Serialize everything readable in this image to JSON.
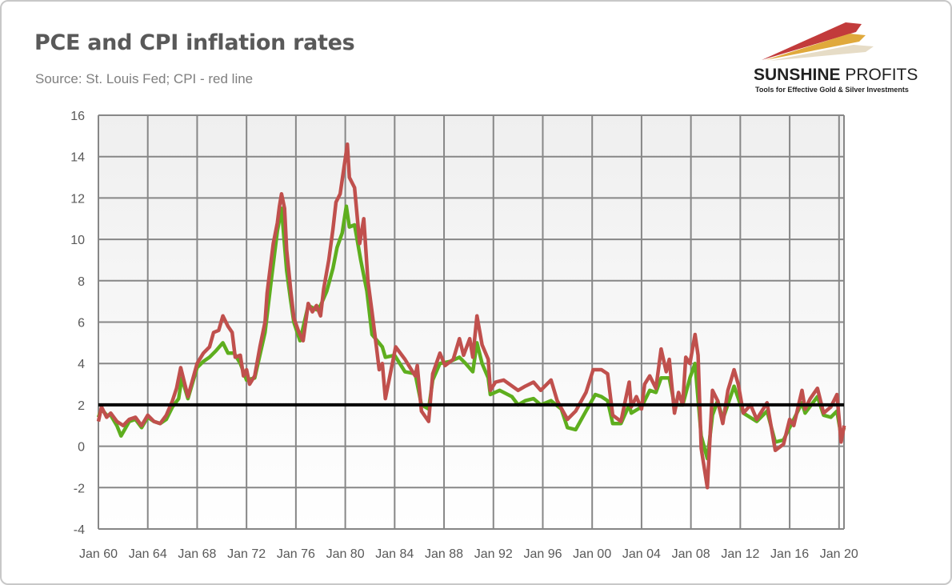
{
  "title": "PCE and CPI inflation rates",
  "subtitle": "Source: St. Louis Fed; CPI - red line",
  "logo": {
    "name_bold": "SUNSHINE",
    "name_light": "PROFITS",
    "tagline": "Tools for Effective Gold & Silver Investments"
  },
  "colors": {
    "pce": "#5eae1e",
    "cpi": "#c0504d",
    "reference": "#000000",
    "grid": "#878787"
  },
  "chart_data": {
    "type": "line",
    "title": "PCE and CPI inflation rates",
    "xlabel": "",
    "ylabel": "",
    "ylim": [
      -4,
      16
    ],
    "yticks": [
      -4,
      -2,
      0,
      2,
      4,
      6,
      8,
      10,
      12,
      14,
      16
    ],
    "xlim": [
      "1960-01",
      "2020-06"
    ],
    "xtick_labels": [
      "Jan 60",
      "Jan 64",
      "Jan 68",
      "Jan 72",
      "Jan 76",
      "Jan 80",
      "Jan 84",
      "Jan 88",
      "Jan 92",
      "Jan 96",
      "Jan 00",
      "Jan 04",
      "Jan 08",
      "Jan 12",
      "Jan 16",
      "Jan 20"
    ],
    "grid": true,
    "reference_line": 2,
    "series": [
      {
        "key": "cpi",
        "color": "#c0504d",
        "points": [
          [
            "1960-01",
            1.2
          ],
          [
            "1960-04",
            1.9
          ],
          [
            "1960-09",
            1.4
          ],
          [
            "1961-01",
            1.6
          ],
          [
            "1961-07",
            1.2
          ],
          [
            "1962-01",
            1.0
          ],
          [
            "1962-07",
            1.3
          ],
          [
            "1963-01",
            1.4
          ],
          [
            "1963-07",
            1.0
          ],
          [
            "1964-01",
            1.5
          ],
          [
            "1964-07",
            1.2
          ],
          [
            "1965-01",
            1.1
          ],
          [
            "1965-07",
            1.5
          ],
          [
            "1966-01",
            2.2
          ],
          [
            "1966-05",
            2.8
          ],
          [
            "1966-09",
            3.8
          ],
          [
            "1967-04",
            2.4
          ],
          [
            "1968-01",
            4.0
          ],
          [
            "1968-07",
            4.5
          ],
          [
            "1969-01",
            4.8
          ],
          [
            "1969-05",
            5.5
          ],
          [
            "1969-10",
            5.6
          ],
          [
            "1970-02",
            6.3
          ],
          [
            "1970-07",
            5.8
          ],
          [
            "1970-11",
            5.5
          ],
          [
            "1971-02",
            4.3
          ],
          [
            "1971-07",
            4.4
          ],
          [
            "1971-10",
            3.4
          ],
          [
            "1972-01",
            3.7
          ],
          [
            "1972-04",
            3.0
          ],
          [
            "1972-09",
            3.4
          ],
          [
            "1973-02",
            4.8
          ],
          [
            "1973-07",
            6.0
          ],
          [
            "1973-09",
            7.4
          ],
          [
            "1973-11",
            8.2
          ],
          [
            "1974-03",
            9.8
          ],
          [
            "1974-07",
            10.8
          ],
          [
            "1974-09",
            11.6
          ],
          [
            "1974-11",
            12.2
          ],
          [
            "1975-02",
            11.5
          ],
          [
            "1975-04",
            9.5
          ],
          [
            "1975-08",
            7.5
          ],
          [
            "1975-11",
            6.2
          ],
          [
            "1976-04",
            5.5
          ],
          [
            "1976-08",
            5.1
          ],
          [
            "1977-01",
            6.9
          ],
          [
            "1977-05",
            6.5
          ],
          [
            "1977-09",
            6.8
          ],
          [
            "1978-01",
            6.3
          ],
          [
            "1978-04",
            7.6
          ],
          [
            "1978-09",
            9.0
          ],
          [
            "1979-01",
            10.5
          ],
          [
            "1979-04",
            11.8
          ],
          [
            "1979-08",
            12.2
          ],
          [
            "1980-03",
            14.6
          ],
          [
            "1980-05",
            13.0
          ],
          [
            "1980-10",
            12.5
          ],
          [
            "1981-03",
            9.8
          ],
          [
            "1981-07",
            11.0
          ],
          [
            "1981-11",
            8.0
          ],
          [
            "1982-03",
            6.5
          ],
          [
            "1982-07",
            4.9
          ],
          [
            "1982-10",
            3.7
          ],
          [
            "1983-01",
            4.0
          ],
          [
            "1983-04",
            2.3
          ],
          [
            "1984-02",
            4.8
          ],
          [
            "1984-11",
            4.2
          ],
          [
            "1985-09",
            3.4
          ],
          [
            "1985-11",
            3.9
          ],
          [
            "1986-03",
            1.7
          ],
          [
            "1986-10",
            1.2
          ],
          [
            "1987-02",
            3.5
          ],
          [
            "1987-09",
            4.5
          ],
          [
            "1988-02",
            3.9
          ],
          [
            "1988-10",
            4.2
          ],
          [
            "1989-04",
            5.2
          ],
          [
            "1989-08",
            4.4
          ],
          [
            "1990-02",
            5.2
          ],
          [
            "1990-05",
            4.3
          ],
          [
            "1990-09",
            6.3
          ],
          [
            "1991-02",
            4.9
          ],
          [
            "1991-08",
            4.2
          ],
          [
            "1991-10",
            2.7
          ],
          [
            "1992-03",
            3.1
          ],
          [
            "1992-11",
            3.2
          ],
          [
            "1994-01",
            2.7
          ],
          [
            "1994-08",
            2.9
          ],
          [
            "1995-04",
            3.1
          ],
          [
            "1995-11",
            2.7
          ],
          [
            "1996-09",
            3.2
          ],
          [
            "1997-03",
            2.2
          ],
          [
            "1998-01",
            1.3
          ],
          [
            "1998-09",
            1.7
          ],
          [
            "1999-07",
            2.6
          ],
          [
            "2000-02",
            3.7
          ],
          [
            "2000-10",
            3.7
          ],
          [
            "2001-04",
            3.5
          ],
          [
            "2001-09",
            1.5
          ],
          [
            "2002-05",
            1.2
          ],
          [
            "2003-01",
            3.1
          ],
          [
            "2003-03",
            1.9
          ],
          [
            "2003-08",
            2.4
          ],
          [
            "2004-01",
            1.8
          ],
          [
            "2004-04",
            3.0
          ],
          [
            "2004-09",
            3.4
          ],
          [
            "2005-03",
            2.8
          ],
          [
            "2005-08",
            4.7
          ],
          [
            "2006-01",
            3.6
          ],
          [
            "2006-04",
            4.2
          ],
          [
            "2006-09",
            1.6
          ],
          [
            "2007-01",
            2.6
          ],
          [
            "2007-05",
            2.0
          ],
          [
            "2007-08",
            4.3
          ],
          [
            "2007-12",
            4.0
          ],
          [
            "2008-05",
            5.4
          ],
          [
            "2008-08",
            4.4
          ],
          [
            "2008-11",
            -0.1
          ],
          [
            "2009-05",
            -2.0
          ],
          [
            "2009-10",
            2.7
          ],
          [
            "2010-03",
            2.2
          ],
          [
            "2010-08",
            1.1
          ],
          [
            "2011-01",
            2.7
          ],
          [
            "2011-07",
            3.7
          ],
          [
            "2011-11",
            3.0
          ],
          [
            "2012-04",
            1.6
          ],
          [
            "2012-11",
            2.0
          ],
          [
            "2013-05",
            1.3
          ],
          [
            "2014-03",
            2.1
          ],
          [
            "2014-11",
            -0.2
          ],
          [
            "2015-07",
            0.1
          ],
          [
            "2016-01",
            1.3
          ],
          [
            "2016-05",
            1.0
          ],
          [
            "2017-01",
            2.7
          ],
          [
            "2017-04",
            1.8
          ],
          [
            "2017-09",
            2.3
          ],
          [
            "2018-04",
            2.8
          ],
          [
            "2018-10",
            1.6
          ],
          [
            "2019-05",
            1.9
          ],
          [
            "2019-11",
            2.5
          ],
          [
            "2020-03",
            0.2
          ],
          [
            "2020-06",
            1.0
          ]
        ]
      },
      {
        "key": "pce",
        "color": "#5eae1e",
        "points": [
          [
            "1960-01",
            1.4
          ],
          [
            "1960-04",
            1.8
          ],
          [
            "1960-09",
            1.5
          ],
          [
            "1961-01",
            1.5
          ],
          [
            "1961-07",
            1.0
          ],
          [
            "1961-11",
            0.5
          ],
          [
            "1962-07",
            1.2
          ],
          [
            "1963-01",
            1.3
          ],
          [
            "1963-07",
            0.9
          ],
          [
            "1964-01",
            1.4
          ],
          [
            "1964-07",
            1.2
          ],
          [
            "1965-01",
            1.1
          ],
          [
            "1965-07",
            1.3
          ],
          [
            "1966-01",
            1.9
          ],
          [
            "1966-07",
            2.3
          ],
          [
            "1966-10",
            3.3
          ],
          [
            "1967-04",
            2.3
          ],
          [
            "1968-01",
            3.8
          ],
          [
            "1968-07",
            4.1
          ],
          [
            "1969-01",
            4.3
          ],
          [
            "1969-07",
            4.6
          ],
          [
            "1970-02",
            5.0
          ],
          [
            "1970-07",
            4.5
          ],
          [
            "1971-01",
            4.5
          ],
          [
            "1971-07",
            4.0
          ],
          [
            "1972-01",
            3.2
          ],
          [
            "1972-09",
            3.3
          ],
          [
            "1973-07",
            5.5
          ],
          [
            "1974-01",
            8.0
          ],
          [
            "1974-07",
            10.4
          ],
          [
            "1974-11",
            11.5
          ],
          [
            "1975-04",
            8.5
          ],
          [
            "1975-08",
            7.0
          ],
          [
            "1975-11",
            6.0
          ],
          [
            "1976-05",
            5.1
          ],
          [
            "1977-01",
            6.8
          ],
          [
            "1977-09",
            6.6
          ],
          [
            "1978-01",
            6.8
          ],
          [
            "1978-07",
            7.5
          ],
          [
            "1979-01",
            8.6
          ],
          [
            "1979-05",
            9.6
          ],
          [
            "1979-10",
            10.3
          ],
          [
            "1980-02",
            11.6
          ],
          [
            "1980-05",
            10.6
          ],
          [
            "1980-10",
            10.7
          ],
          [
            "1981-04",
            9.0
          ],
          [
            "1981-10",
            7.5
          ],
          [
            "1982-03",
            5.4
          ],
          [
            "1983-01",
            4.8
          ],
          [
            "1983-04",
            4.3
          ],
          [
            "1984-01",
            4.4
          ],
          [
            "1984-11",
            3.6
          ],
          [
            "1985-09",
            3.5
          ],
          [
            "1986-03",
            2.0
          ],
          [
            "1986-10",
            1.8
          ],
          [
            "1987-02",
            3.2
          ],
          [
            "1987-09",
            4.0
          ],
          [
            "1988-07",
            4.1
          ],
          [
            "1989-04",
            4.3
          ],
          [
            "1989-10",
            4.0
          ],
          [
            "1990-05",
            3.6
          ],
          [
            "1990-09",
            5.0
          ],
          [
            "1991-02",
            4.0
          ],
          [
            "1991-08",
            3.3
          ],
          [
            "1991-10",
            2.5
          ],
          [
            "1992-07",
            2.7
          ],
          [
            "1993-07",
            2.4
          ],
          [
            "1994-01",
            2.0
          ],
          [
            "1994-08",
            2.2
          ],
          [
            "1995-04",
            2.3
          ],
          [
            "1995-11",
            2.0
          ],
          [
            "1996-09",
            2.2
          ],
          [
            "1997-07",
            1.8
          ],
          [
            "1998-01",
            0.9
          ],
          [
            "1998-09",
            0.8
          ],
          [
            "1999-07",
            1.7
          ],
          [
            "2000-04",
            2.5
          ],
          [
            "2000-10",
            2.4
          ],
          [
            "2001-04",
            2.2
          ],
          [
            "2001-09",
            1.1
          ],
          [
            "2002-05",
            1.1
          ],
          [
            "2003-01",
            2.0
          ],
          [
            "2003-03",
            1.6
          ],
          [
            "2004-01",
            1.9
          ],
          [
            "2004-09",
            2.7
          ],
          [
            "2005-03",
            2.6
          ],
          [
            "2005-08",
            3.3
          ],
          [
            "2006-04",
            3.3
          ],
          [
            "2006-09",
            2.0
          ],
          [
            "2007-05",
            2.0
          ],
          [
            "2007-12",
            3.3
          ],
          [
            "2008-05",
            4.0
          ],
          [
            "2008-11",
            0.5
          ],
          [
            "2009-05",
            -0.6
          ],
          [
            "2009-10",
            1.5
          ],
          [
            "2010-03",
            2.2
          ],
          [
            "2010-08",
            1.3
          ],
          [
            "2011-07",
            2.9
          ],
          [
            "2012-04",
            1.6
          ],
          [
            "2013-05",
            1.2
          ],
          [
            "2014-03",
            1.7
          ],
          [
            "2014-11",
            0.2
          ],
          [
            "2015-07",
            0.3
          ],
          [
            "2016-01",
            0.9
          ],
          [
            "2017-01",
            2.1
          ],
          [
            "2017-04",
            1.6
          ],
          [
            "2018-04",
            2.4
          ],
          [
            "2018-10",
            1.5
          ],
          [
            "2019-05",
            1.4
          ],
          [
            "2019-11",
            1.7
          ],
          [
            "2020-03",
            0.5
          ],
          [
            "2020-06",
            0.9
          ]
        ]
      }
    ]
  }
}
